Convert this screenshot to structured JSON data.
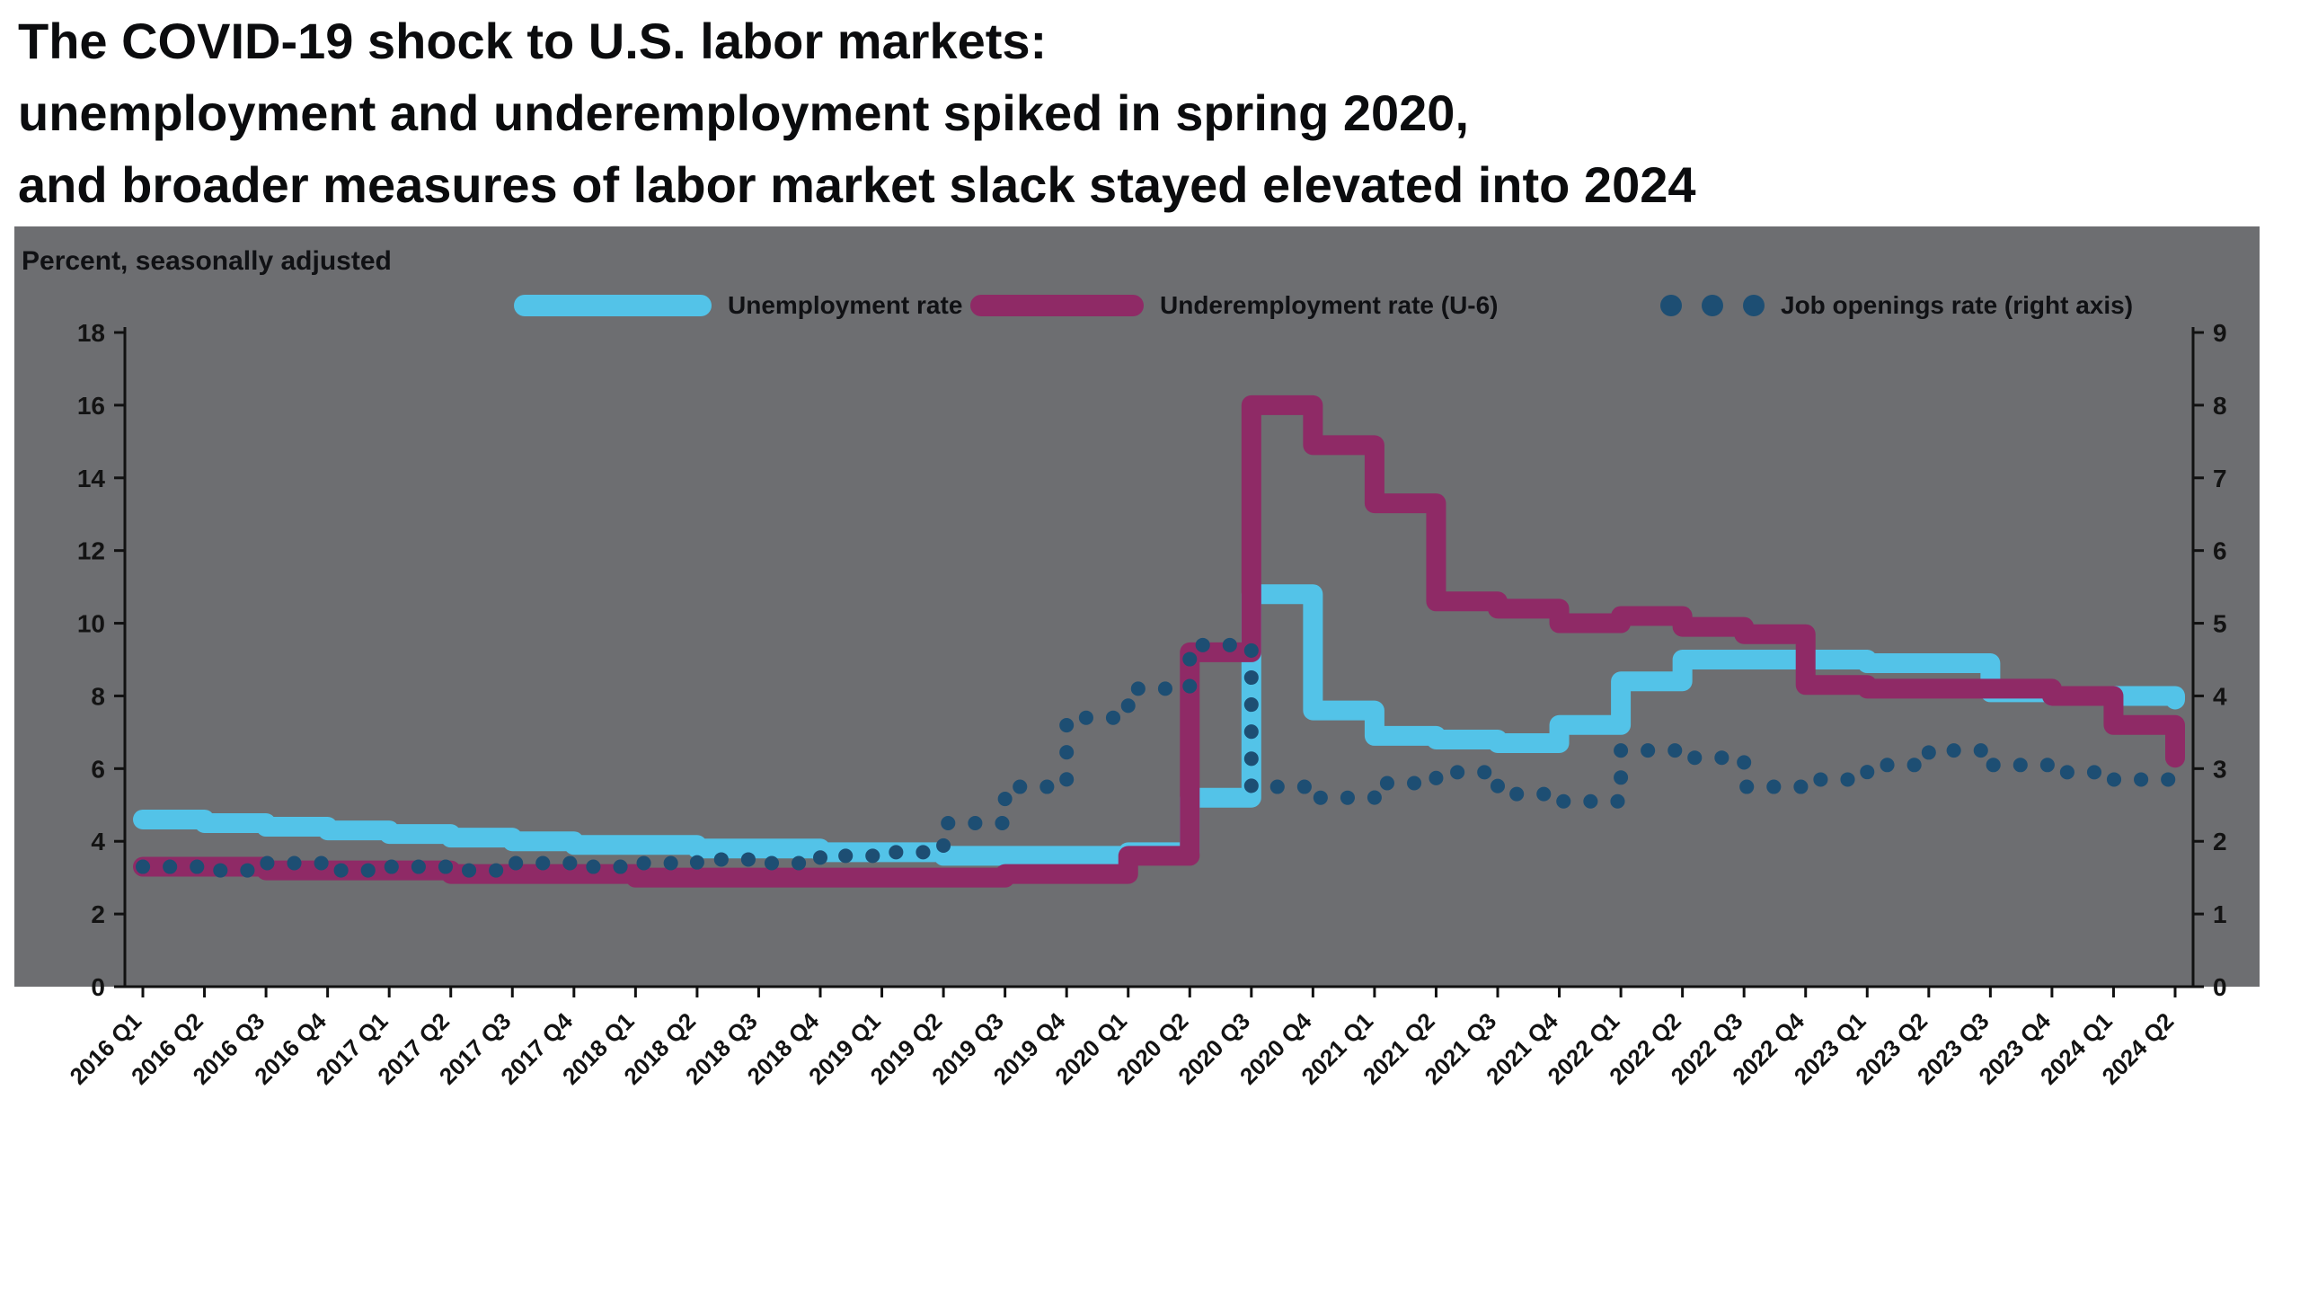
{
  "heading": {
    "line1": "The COVID-19 shock to U.S. labor markets:",
    "line2": "unemployment and underemployment spiked in spring 2020,",
    "line3": "and broader measures of labor market slack stayed elevated into 2024"
  },
  "panel": {
    "background_color": "#6d6e71",
    "units_label": "Percent, seasonally adjusted"
  },
  "legend": [
    {
      "label": "Unemployment rate",
      "color": "#53c3e8",
      "style": "solid"
    },
    {
      "label": "Underemployment rate (U-6)",
      "color": "#8f2a66",
      "style": "solid"
    },
    {
      "label": "Job openings rate (right axis)",
      "color": "#1d4e73",
      "style": "dotted"
    }
  ],
  "chart_data": {
    "type": "line",
    "line_style": "step",
    "grid": false,
    "legend_position": "top",
    "plot_background": "#6d6e71",
    "categories": [
      "2016 Q1",
      "2016 Q2",
      "2016 Q3",
      "2016 Q4",
      "2017 Q1",
      "2017 Q2",
      "2017 Q3",
      "2017 Q4",
      "2018 Q1",
      "2018 Q2",
      "2018 Q3",
      "2018 Q4",
      "2019 Q1",
      "2019 Q2",
      "2019 Q3",
      "2019 Q4",
      "2020 Q1",
      "2020 Q2",
      "2020 Q3",
      "2020 Q4",
      "2021 Q1",
      "2021 Q2",
      "2021 Q3",
      "2021 Q4",
      "2022 Q1",
      "2022 Q2",
      "2022 Q3",
      "2022 Q4",
      "2023 Q1",
      "2023 Q2",
      "2023 Q3",
      "2023 Q4",
      "2024 Q1",
      "2024 Q2"
    ],
    "left_axis": {
      "min": 0,
      "max": 18,
      "step": 2,
      "labels": [
        "0",
        "2",
        "4",
        "6",
        "8",
        "10",
        "12",
        "14",
        "16",
        "18"
      ]
    },
    "right_axis": {
      "min": 0,
      "max": 9,
      "step": 1,
      "labels": [
        "0",
        "1",
        "2",
        "3",
        "4",
        "5",
        "6",
        "7",
        "8",
        "9"
      ]
    },
    "series": [
      {
        "name": "Unemployment rate",
        "axis": "left",
        "color": "#53c3e8",
        "style": "solid",
        "values": [
          4.6,
          4.5,
          4.4,
          4.3,
          4.2,
          4.1,
          4.0,
          3.9,
          3.9,
          3.8,
          3.8,
          3.7,
          3.7,
          3.6,
          3.6,
          3.6,
          3.7,
          5.2,
          10.8,
          7.6,
          6.9,
          6.8,
          6.7,
          7.2,
          8.4,
          9.0,
          9.0,
          9.0,
          8.9,
          8.9,
          8.1,
          8.0,
          8.0,
          7.9
        ]
      },
      {
        "name": "Underemployment rate (U-6)",
        "axis": "left",
        "color": "#8f2a66",
        "style": "solid",
        "values": [
          3.3,
          3.3,
          3.2,
          3.2,
          3.2,
          3.1,
          3.1,
          3.1,
          3.0,
          3.0,
          3.0,
          3.0,
          3.0,
          3.0,
          3.1,
          3.1,
          3.6,
          9.2,
          16.0,
          14.9,
          13.3,
          10.6,
          10.4,
          10.0,
          10.2,
          9.9,
          9.7,
          8.3,
          8.2,
          8.2,
          8.2,
          8.0,
          7.2,
          6.3
        ]
      },
      {
        "name": "Job openings rate (right axis)",
        "axis": "right",
        "color": "#1d4e73",
        "style": "dotted",
        "values": [
          1.65,
          1.6,
          1.7,
          1.6,
          1.65,
          1.6,
          1.7,
          1.65,
          1.7,
          1.75,
          1.7,
          1.8,
          1.85,
          2.25,
          2.75,
          3.7,
          4.1,
          4.7,
          2.75,
          2.6,
          2.8,
          2.95,
          2.65,
          2.55,
          3.25,
          3.15,
          2.75,
          2.85,
          3.05,
          3.25,
          3.05,
          2.95,
          2.85,
          2.85
        ]
      }
    ]
  }
}
